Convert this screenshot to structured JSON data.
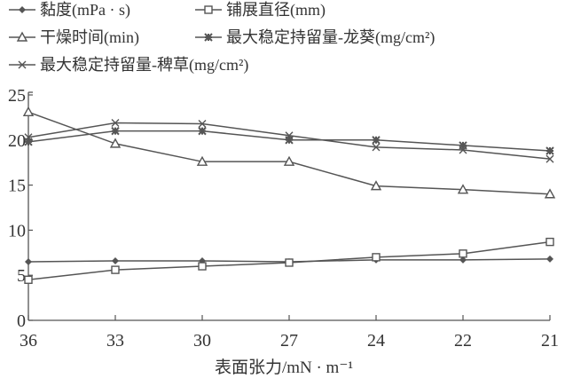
{
  "chart_data": {
    "type": "line",
    "title": "",
    "xlabel": "表面张力/mN · m⁻¹",
    "ylabel": "",
    "x": [
      "36",
      "33",
      "30",
      "27",
      "24",
      "22",
      "21"
    ],
    "ylim": [
      0,
      25
    ],
    "yticks": [
      "0",
      "5",
      "10",
      "15",
      "20",
      "25"
    ],
    "grid": false,
    "legend_placement": "top",
    "line_color": "#555555",
    "series": [
      {
        "name": "黏度(mPa · s)",
        "marker": "diamond",
        "values": [
          6.5,
          6.6,
          6.6,
          6.5,
          6.7,
          6.7,
          6.8
        ]
      },
      {
        "name": "铺展直径(mm)",
        "marker": "square",
        "values": [
          4.5,
          5.6,
          6.0,
          6.4,
          7.0,
          7.4,
          8.7
        ]
      },
      {
        "name": "干燥时间(min)",
        "marker": "triangle",
        "values": [
          23.1,
          19.6,
          17.6,
          17.6,
          14.9,
          14.5,
          14.0
        ]
      },
      {
        "name": "最大稳定持留量-龙葵(mg/cm²)",
        "marker": "asterisk",
        "values": [
          19.8,
          21.0,
          21.0,
          20.0,
          20.0,
          19.4,
          18.8
        ]
      },
      {
        "name": "最大稳定持留量-稗草(mg/cm²)",
        "marker": "x",
        "values": [
          20.3,
          21.9,
          21.8,
          20.5,
          19.2,
          18.9,
          17.9
        ]
      }
    ]
  }
}
